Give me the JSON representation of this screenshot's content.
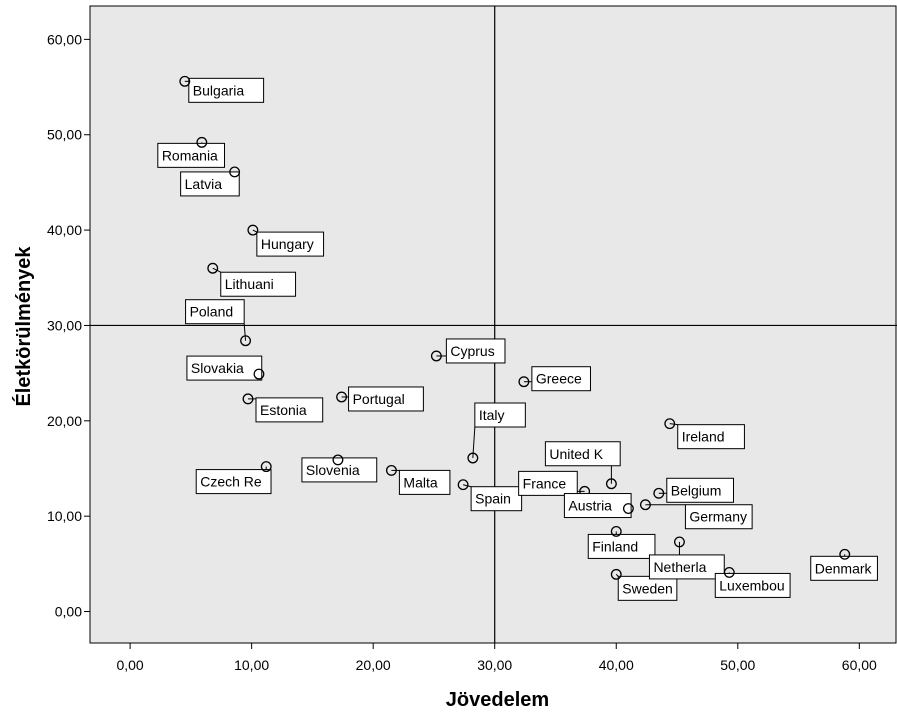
{
  "chart_data": {
    "type": "scatter",
    "xlabel": "Jövedelem",
    "ylabel": "Életkörülmények",
    "xlim": [
      -3.3,
      63.1
    ],
    "ylim": [
      -3.3,
      63.5
    ],
    "xticks": [
      "0,00",
      "10,00",
      "20,00",
      "30,00",
      "40,00",
      "50,00",
      "60,00"
    ],
    "yticks": [
      "0,00",
      "10,00",
      "20,00",
      "30,00",
      "40,00",
      "50,00",
      "60,00"
    ],
    "grid": false,
    "reference_lines": {
      "x": 30,
      "y": 30
    },
    "colors": {
      "plot_bg": "#e8e8e8",
      "point": "#000000",
      "label_bg": "#ffffff"
    },
    "points": [
      {
        "name": "Bulgaria",
        "x": 4.5,
        "y": 55.6
      },
      {
        "name": "Romania",
        "x": 5.9,
        "y": 49.2
      },
      {
        "name": "Latvia",
        "x": 8.6,
        "y": 46.1
      },
      {
        "name": "Hungary",
        "x": 10.1,
        "y": 40.0
      },
      {
        "name": "Lithuani",
        "x": 6.8,
        "y": 36.0
      },
      {
        "name": "Poland",
        "x": 9.5,
        "y": 28.4
      },
      {
        "name": "Slovakia",
        "x": 10.6,
        "y": 24.9
      },
      {
        "name": "Estonia",
        "x": 9.7,
        "y": 22.3
      },
      {
        "name": "Czech Re",
        "x": 11.2,
        "y": 15.2
      },
      {
        "name": "Slovenia",
        "x": 17.1,
        "y": 15.9
      },
      {
        "name": "Malta",
        "x": 21.5,
        "y": 14.8
      },
      {
        "name": "Portugal",
        "x": 17.4,
        "y": 22.5
      },
      {
        "name": "Cyprus",
        "x": 25.2,
        "y": 26.8
      },
      {
        "name": "Italy",
        "x": 28.2,
        "y": 16.1
      },
      {
        "name": "Spain",
        "x": 27.4,
        "y": 13.3
      },
      {
        "name": "Greece",
        "x": 32.4,
        "y": 24.1
      },
      {
        "name": "United K",
        "x": 39.6,
        "y": 13.4
      },
      {
        "name": "France",
        "x": 37.4,
        "y": 12.6
      },
      {
        "name": "Austria",
        "x": 41.0,
        "y": 10.8
      },
      {
        "name": "Finland",
        "x": 40.0,
        "y": 8.4
      },
      {
        "name": "Sweden",
        "x": 40.0,
        "y": 3.9
      },
      {
        "name": "Ireland",
        "x": 44.4,
        "y": 19.7
      },
      {
        "name": "Belgium",
        "x": 43.5,
        "y": 12.4
      },
      {
        "name": "Germany",
        "x": 42.4,
        "y": 11.2
      },
      {
        "name": "Netherla",
        "x": 45.2,
        "y": 7.3
      },
      {
        "name": "Luxembou",
        "x": 49.3,
        "y": 4.1
      },
      {
        "name": "Denmark",
        "x": 58.8,
        "y": 6.0
      }
    ]
  }
}
